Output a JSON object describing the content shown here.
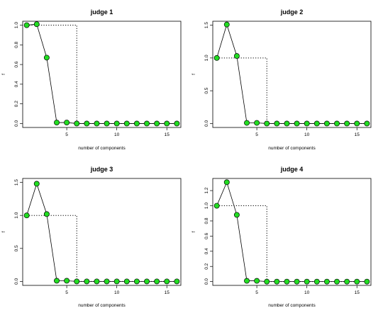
{
  "chart_data": [
    {
      "type": "line",
      "title": "judge 1",
      "xlabel": "number of components",
      "ylabel": "f",
      "xlim": [
        0.6,
        16.4
      ],
      "ylim": [
        -0.04,
        1.04
      ],
      "xticks": [
        5,
        10,
        15
      ],
      "yticks": [
        0.0,
        0.2,
        0.4,
        0.6,
        0.8,
        1.0
      ],
      "ytick_labels": [
        "0.0",
        "0.2",
        "0.4",
        "0.6",
        "0.8",
        "1.0"
      ],
      "x": [
        1,
        2,
        3,
        4,
        5,
        6,
        7,
        8,
        9,
        10,
        11,
        12,
        13,
        14,
        15,
        16
      ],
      "series": [
        {
          "values": [
            1.0,
            1.01,
            0.67,
            0.01,
            0.01,
            0.0,
            0.0,
            0.0,
            0.0,
            0.0,
            0.0,
            0.0,
            0.0,
            0.0,
            0.0,
            0.0
          ],
          "style": "solid-with-points"
        },
        {
          "values": [
            1.0,
            1.0,
            1.0,
            1.0,
            1.0,
            0.0,
            0.0,
            0.0,
            0.0,
            0.0,
            0.0,
            0.0,
            0.0,
            0.0,
            0.0,
            0.0
          ],
          "style": "dotted-step"
        }
      ],
      "grid": false
    },
    {
      "type": "line",
      "title": "judge 2",
      "xlabel": "number of components",
      "ylabel": "f",
      "xlim": [
        0.6,
        16.4
      ],
      "ylim": [
        -0.06,
        1.56
      ],
      "xticks": [
        5,
        10,
        15
      ],
      "yticks": [
        0.0,
        0.5,
        1.0,
        1.5
      ],
      "ytick_labels": [
        "0.0",
        "0.5",
        "1.0",
        "1.5"
      ],
      "x": [
        1,
        2,
        3,
        4,
        5,
        6,
        7,
        8,
        9,
        10,
        11,
        12,
        13,
        14,
        15,
        16
      ],
      "series": [
        {
          "values": [
            1.0,
            1.51,
            1.03,
            0.01,
            0.01,
            0.0,
            0.0,
            0.0,
            0.0,
            0.0,
            0.0,
            0.0,
            0.0,
            0.0,
            0.0,
            0.0
          ],
          "style": "solid-with-points"
        },
        {
          "values": [
            1.0,
            1.0,
            1.0,
            1.0,
            1.0,
            0.0,
            0.0,
            0.0,
            0.0,
            0.0,
            0.0,
            0.0,
            0.0,
            0.0,
            0.0,
            0.0
          ],
          "style": "dotted-step"
        }
      ],
      "grid": false
    },
    {
      "type": "line",
      "title": "judge 3",
      "xlabel": "number of components",
      "ylabel": "f",
      "xlim": [
        0.6,
        16.4
      ],
      "ylim": [
        -0.06,
        1.56
      ],
      "xticks": [
        5,
        10,
        15
      ],
      "yticks": [
        0.0,
        0.5,
        1.0,
        1.5
      ],
      "ytick_labels": [
        "0.0",
        "0.5",
        "1.0",
        "1.5"
      ],
      "x": [
        1,
        2,
        3,
        4,
        5,
        6,
        7,
        8,
        9,
        10,
        11,
        12,
        13,
        14,
        15,
        16
      ],
      "series": [
        {
          "values": [
            1.0,
            1.48,
            1.02,
            0.01,
            0.01,
            0.0,
            0.0,
            0.0,
            0.0,
            0.0,
            0.0,
            0.0,
            0.0,
            0.0,
            0.0,
            0.0
          ],
          "style": "solid-with-points"
        },
        {
          "values": [
            1.0,
            1.0,
            1.0,
            1.0,
            1.0,
            0.0,
            0.0,
            0.0,
            0.0,
            0.0,
            0.0,
            0.0,
            0.0,
            0.0,
            0.0,
            0.0
          ],
          "style": "dotted-step"
        }
      ],
      "grid": false
    },
    {
      "type": "line",
      "title": "judge 4",
      "xlabel": "number of components",
      "ylabel": "f",
      "xlim": [
        0.6,
        16.4
      ],
      "ylim": [
        -0.05,
        1.36
      ],
      "xticks": [
        5,
        10,
        15
      ],
      "yticks": [
        0.0,
        0.2,
        0.4,
        0.6,
        0.8,
        1.0,
        1.2
      ],
      "ytick_labels": [
        "0.0",
        "0.2",
        "0.4",
        "0.6",
        "0.8",
        "1.0",
        "1.2"
      ],
      "x": [
        1,
        2,
        3,
        4,
        5,
        6,
        7,
        8,
        9,
        10,
        11,
        12,
        13,
        14,
        15,
        16
      ],
      "series": [
        {
          "values": [
            1.0,
            1.31,
            0.88,
            0.01,
            0.01,
            0.0,
            0.0,
            0.0,
            0.0,
            0.0,
            0.0,
            0.0,
            0.0,
            0.0,
            0.0,
            0.0
          ],
          "style": "solid-with-points"
        },
        {
          "values": [
            1.0,
            1.0,
            1.0,
            1.0,
            1.0,
            0.0,
            0.0,
            0.0,
            0.0,
            0.0,
            0.0,
            0.0,
            0.0,
            0.0,
            0.0,
            0.0
          ],
          "style": "dotted-step"
        }
      ],
      "grid": false
    }
  ],
  "colors": {
    "marker_fill": "#22dd22",
    "marker_stroke": "#000000",
    "line": "#000000",
    "background": "#ffffff"
  }
}
